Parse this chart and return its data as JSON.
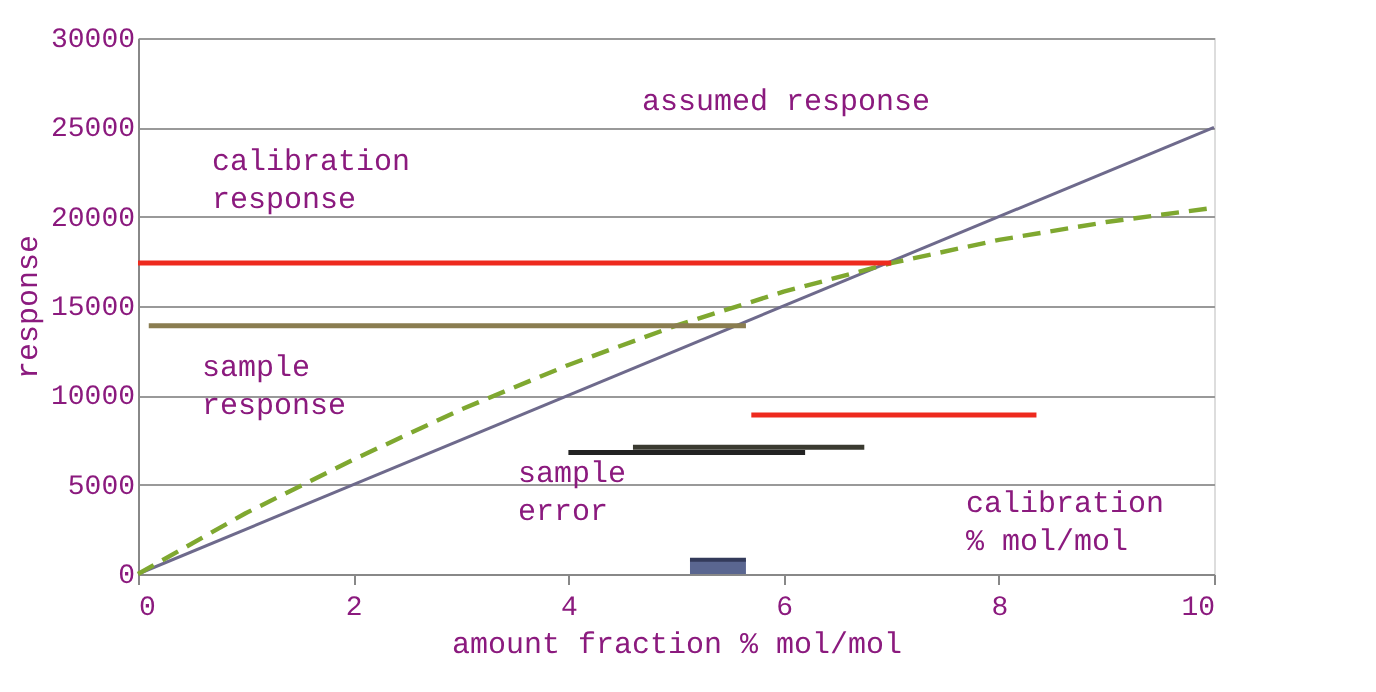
{
  "chart_data": {
    "type": "line",
    "xlabel": "amount fraction % mol/mol",
    "ylabel": "response",
    "xlim": [
      0,
      10
    ],
    "xticks": [
      0,
      2,
      4,
      6,
      8,
      10
    ],
    "ylim": [
      0,
      30000
    ],
    "yticks": [
      0,
      5000,
      10000,
      15000,
      20000,
      25000,
      30000
    ],
    "grid": "y",
    "line_style": "solid",
    "series": [
      {
        "color": "#6e6a8c",
        "x": [
          0,
          10
        ],
        "values": [
          0,
          25000
        ]
      },
      {
        "color": "#7fa830",
        "line_style": "dashed",
        "x": [
          0,
          1,
          2,
          3,
          4,
          5,
          6,
          7,
          8,
          9,
          10
        ],
        "values": [
          0,
          3400,
          6400,
          9200,
          11700,
          13900,
          15800,
          17400,
          18700,
          19700,
          20500
        ]
      },
      {
        "color": "#ee2a1e",
        "x": [
          0,
          7.0
        ],
        "values": [
          17400,
          17400
        ]
      },
      {
        "color": "#8a7d50",
        "x": [
          0.1,
          5.65
        ],
        "values": [
          13900,
          13900
        ]
      },
      {
        "color": "#ee2a1e",
        "x": [
          5.7,
          8.35
        ],
        "values": [
          8900,
          8900
        ]
      },
      {
        "color": "#222222",
        "x": [
          4.0,
          6.2
        ],
        "values": [
          6800,
          6800
        ]
      },
      {
        "color": "#3a3a30",
        "x": [
          4.6,
          6.75
        ],
        "values": [
          7100,
          7100
        ]
      },
      {
        "type": "area",
        "color": "#5a6690",
        "x": [
          5.13,
          5.65
        ],
        "values": [
          800,
          800
        ]
      }
    ],
    "annotations": [
      "assumed response",
      "calibration\nresponse",
      "sample\nresponse",
      "sample\nerror",
      "calibration\n% mol/mol"
    ]
  }
}
